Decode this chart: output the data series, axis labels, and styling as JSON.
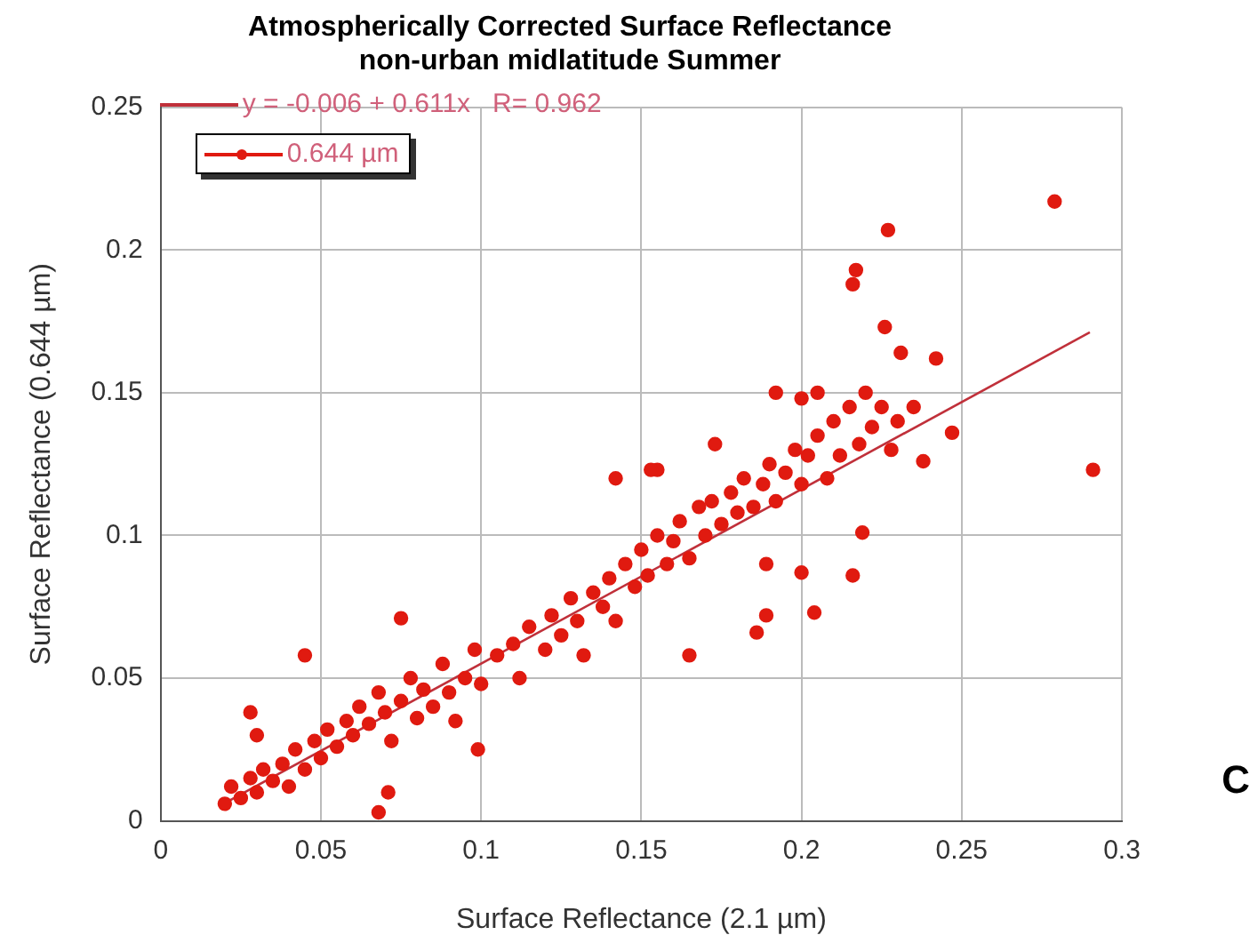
{
  "chart_data": {
    "type": "scatter",
    "title": "Atmospherically Corrected Surface Reflectance",
    "subtitle": "non-urban midlatitude Summer",
    "xlabel": "Surface Reflectance (2.1 µm)",
    "ylabel": "Surface Reflectance (0.644 µm)",
    "annotations": [
      "C"
    ],
    "xlim": [
      0,
      0.3
    ],
    "ylim": [
      0,
      0.25
    ],
    "xticks": [
      0,
      0.05,
      0.1,
      0.15,
      0.2,
      0.25,
      0.3
    ],
    "yticks": [
      0,
      0.05,
      0.1,
      0.15,
      0.2,
      0.25
    ],
    "grid": true,
    "legend": "top left",
    "series": [
      {
        "name": "0.644 µm",
        "color": "#e01a10",
        "marker": "circle",
        "x": [
          0.02,
          0.022,
          0.025,
          0.028,
          0.03,
          0.032,
          0.035,
          0.038,
          0.04,
          0.042,
          0.045,
          0.048,
          0.05,
          0.052,
          0.055,
          0.058,
          0.06,
          0.062,
          0.065,
          0.068,
          0.07,
          0.072,
          0.075,
          0.078,
          0.08,
          0.082,
          0.085,
          0.088,
          0.09,
          0.092,
          0.095,
          0.098,
          0.1,
          0.03,
          0.028,
          0.045,
          0.075,
          0.071,
          0.068,
          0.099,
          0.142,
          0.155,
          0.279,
          0.291,
          0.227,
          0.217,
          0.216,
          0.226,
          0.231,
          0.242,
          0.247,
          0.238,
          0.192,
          0.173,
          0.165,
          0.186,
          0.189,
          0.204,
          0.216,
          0.219,
          0.2,
          0.189,
          0.153,
          0.105,
          0.11,
          0.112,
          0.115,
          0.12,
          0.122,
          0.125,
          0.128,
          0.13,
          0.132,
          0.135,
          0.138,
          0.14,
          0.142,
          0.145,
          0.148,
          0.15,
          0.152,
          0.155,
          0.158,
          0.16,
          0.162,
          0.165,
          0.168,
          0.17,
          0.172,
          0.175,
          0.178,
          0.18,
          0.182,
          0.185,
          0.188,
          0.19,
          0.192,
          0.195,
          0.198,
          0.2,
          0.202,
          0.205,
          0.208,
          0.21,
          0.212,
          0.215,
          0.218,
          0.22,
          0.222,
          0.225,
          0.228,
          0.23,
          0.2,
          0.205,
          0.235
        ],
        "values": [
          0.006,
          0.012,
          0.008,
          0.015,
          0.01,
          0.018,
          0.014,
          0.02,
          0.012,
          0.025,
          0.018,
          0.028,
          0.022,
          0.032,
          0.026,
          0.035,
          0.03,
          0.04,
          0.034,
          0.045,
          0.038,
          0.028,
          0.042,
          0.05,
          0.036,
          0.046,
          0.04,
          0.055,
          0.045,
          0.035,
          0.05,
          0.06,
          0.048,
          0.03,
          0.038,
          0.058,
          0.071,
          0.01,
          0.003,
          0.025,
          0.12,
          0.123,
          0.217,
          0.123,
          0.207,
          0.193,
          0.188,
          0.173,
          0.164,
          0.162,
          0.136,
          0.126,
          0.15,
          0.132,
          0.058,
          0.066,
          0.072,
          0.073,
          0.086,
          0.101,
          0.087,
          0.09,
          0.123,
          0.058,
          0.062,
          0.05,
          0.068,
          0.06,
          0.072,
          0.065,
          0.078,
          0.07,
          0.058,
          0.08,
          0.075,
          0.085,
          0.07,
          0.09,
          0.082,
          0.095,
          0.086,
          0.1,
          0.09,
          0.098,
          0.105,
          0.092,
          0.11,
          0.1,
          0.112,
          0.104,
          0.115,
          0.108,
          0.12,
          0.11,
          0.118,
          0.125,
          0.112,
          0.122,
          0.13,
          0.118,
          0.128,
          0.135,
          0.12,
          0.14,
          0.128,
          0.145,
          0.132,
          0.15,
          0.138,
          0.145,
          0.13,
          0.14,
          0.148,
          0.15,
          0.145
        ]
      },
      {
        "name": "y = -0.006 + 0.611x   R= 0.962",
        "type": "line",
        "marker": "none",
        "color": "#c0303a",
        "x": [
          0.02,
          0.29
        ],
        "values": [
          0.0062,
          0.1712
        ]
      }
    ]
  }
}
